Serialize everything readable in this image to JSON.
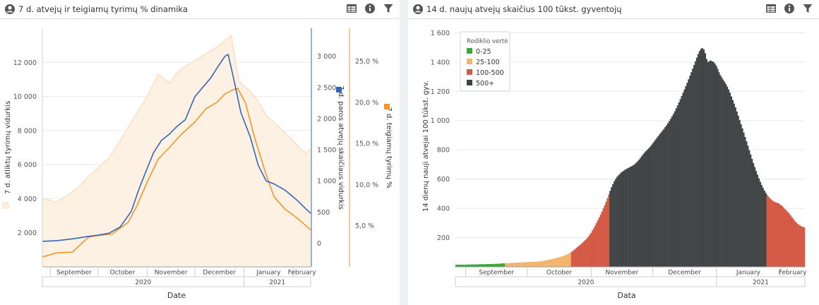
{
  "panels": {
    "left": {
      "title": "7 d. atvejų ir teigiamų tyrimų % dinamika",
      "icons": [
        "user-circle-icon",
        "table-icon",
        "info-icon",
        "filter-icon"
      ]
    },
    "right": {
      "title": "14 d. naujų atvejų skaičius 100 tūkst. gyventojų",
      "icons": [
        "user-circle-icon",
        "table-icon",
        "info-icon",
        "filter-icon"
      ]
    }
  },
  "colors": {
    "tests_area": "#fdf1e3",
    "tests_line": "#fbe0c0",
    "cases_line": "#3566b5",
    "positive_line": "#f2962b",
    "bar_green": "#3aa935",
    "bar_yellow": "#f2b56b",
    "bar_red": "#d45a45",
    "bar_black": "#3e4242"
  },
  "chart_data": [
    {
      "type": "line",
      "x_field": "Date",
      "xlabel": "Date",
      "x_month_labels": [
        "September",
        "October",
        "November",
        "December",
        "January",
        "February"
      ],
      "x_year_labels": [
        "2020",
        "2021"
      ],
      "axes": {
        "tests": {
          "label": "7 d. atliktų tyrimų vidurkis",
          "ticks": [
            "2 000",
            "4 000",
            "6 000",
            "8 000",
            "10 000",
            "12 000"
          ],
          "range": [
            0,
            14000
          ]
        },
        "cases": {
          "label": "7 d. paros atvejų skaičiaus vidurkis",
          "ticks": [
            "0",
            "500",
            "1 000",
            "1 500",
            "2 000",
            "2 500",
            "3 000"
          ],
          "range": [
            -380,
            3450
          ]
        },
        "positive": {
          "label": "7 d. teigiamų tyrimų %",
          "ticks": [
            "5,0 %",
            "10,0 %",
            "15,0 %",
            "20,0 %",
            "25,0 %"
          ],
          "range": [
            0,
            0.29
          ]
        }
      },
      "series": [
        {
          "key": "tests",
          "name": "7 d. atliktų tyrimų vidurkis",
          "axis": "tests",
          "x": [
            "2020-08-27",
            "2020-09-01",
            "2020-09-05",
            "2020-09-10",
            "2020-09-15",
            "2020-09-20",
            "2020-09-25",
            "2020-10-01",
            "2020-10-08",
            "2020-10-15",
            "2020-10-22",
            "2020-11-01",
            "2020-11-08",
            "2020-11-15",
            "2020-11-22",
            "2020-12-01",
            "2020-12-08",
            "2020-12-15",
            "2020-12-20",
            "2020-12-24",
            "2020-12-27",
            "2020-12-29",
            "2021-01-01",
            "2021-01-05",
            "2021-01-10",
            "2021-01-15",
            "2021-01-22",
            "2021-02-01",
            "2021-02-06",
            "2021-02-09",
            "2021-02-12"
          ],
          "y": [
            4000,
            3900,
            3800,
            4100,
            4400,
            4800,
            5300,
            5800,
            6400,
            7400,
            8500,
            10000,
            11300,
            10800,
            11600,
            12100,
            12500,
            12900,
            13300,
            13600,
            11800,
            10900,
            10600,
            10300,
            9700,
            8900,
            8300,
            7400,
            6900,
            6700,
            6900
          ]
        },
        {
          "key": "cases",
          "name": "7 d. paros atvejų skaičiaus vidurkis",
          "axis": "cases",
          "x": [
            "2020-08-27",
            "2020-09-05",
            "2020-09-15",
            "2020-09-25",
            "2020-10-01",
            "2020-10-08",
            "2020-10-15",
            "2020-10-22",
            "2020-10-27",
            "2020-11-01",
            "2020-11-05",
            "2020-11-10",
            "2020-11-15",
            "2020-11-20",
            "2020-11-25",
            "2020-12-01",
            "2020-12-06",
            "2020-12-11",
            "2020-12-16",
            "2020-12-20",
            "2020-12-22",
            "2020-12-25",
            "2020-12-30",
            "2021-01-05",
            "2021-01-10",
            "2021-01-15",
            "2021-01-20",
            "2021-01-27",
            "2021-02-03",
            "2021-02-09",
            "2021-02-12"
          ],
          "y": [
            30,
            40,
            70,
            110,
            130,
            160,
            260,
            510,
            880,
            1200,
            1450,
            1650,
            1750,
            1880,
            1980,
            2350,
            2500,
            2650,
            2850,
            3000,
            3030,
            2700,
            2100,
            1700,
            1250,
            1000,
            950,
            850,
            700,
            550,
            480
          ]
        },
        {
          "key": "positive",
          "name": "7 d. teigiamų tyrimų %",
          "axis": "positive",
          "x": [
            "2020-08-27",
            "2020-09-05",
            "2020-09-15",
            "2020-09-25",
            "2020-10-01",
            "2020-10-10",
            "2020-10-20",
            "2020-10-25",
            "2020-11-01",
            "2020-11-08",
            "2020-11-15",
            "2020-11-22",
            "2020-12-01",
            "2020-12-08",
            "2020-12-15",
            "2020-12-20",
            "2020-12-25",
            "2020-12-28",
            "2021-01-02",
            "2021-01-08",
            "2021-01-15",
            "2021-01-20",
            "2021-01-27",
            "2021-02-03",
            "2021-02-09",
            "2021-02-12"
          ],
          "y": [
            0.012,
            0.017,
            0.018,
            0.036,
            0.038,
            0.04,
            0.054,
            0.072,
            0.103,
            0.131,
            0.145,
            0.16,
            0.176,
            0.192,
            0.2,
            0.21,
            0.215,
            0.217,
            0.199,
            0.155,
            0.112,
            0.085,
            0.07,
            0.06,
            0.05,
            0.045
          ]
        }
      ]
    },
    {
      "type": "bar",
      "x_field": "Data",
      "xlabel": "Data",
      "ylabel": "14 dienų nauji atvejai 100 tūkst. gyv.",
      "y_ticks": [
        "200",
        "400",
        "600",
        "800",
        "1 000",
        "1 200",
        "1 400",
        "1 600"
      ],
      "ylim": [
        0,
        1650
      ],
      "x_month_labels": [
        "September",
        "October",
        "November",
        "December",
        "January",
        "February"
      ],
      "x_year_labels": [
        "2020",
        "2021"
      ],
      "legend": {
        "title": "Rodiklio vertė",
        "placement": "top-left",
        "items": [
          {
            "label": "0-25",
            "color": "#3aa935"
          },
          {
            "label": "25-100",
            "color": "#f2b56b"
          },
          {
            "label": "100-500",
            "color": "#d45a45"
          },
          {
            "label": "500+",
            "color": "#3e4242"
          }
        ]
      },
      "x_start": "2020-08-27",
      "x_end": "2021-02-12",
      "y": [
        15,
        15,
        15,
        15,
        15,
        15,
        15,
        15,
        16,
        16,
        16,
        16,
        16,
        17,
        17,
        17,
        17,
        18,
        18,
        18,
        18,
        18,
        19,
        19,
        19,
        19,
        20,
        20,
        20,
        21,
        21,
        22,
        22,
        23,
        24,
        24,
        25,
        25,
        26,
        26,
        27,
        27,
        28,
        28,
        29,
        29,
        30,
        30,
        31,
        31,
        32,
        32,
        33,
        33,
        34,
        34,
        35,
        35,
        36,
        36,
        37,
        38,
        39,
        40,
        42,
        44,
        46,
        48,
        50,
        52,
        54,
        56,
        58,
        60,
        63,
        66,
        69,
        72,
        75,
        78,
        82,
        86,
        91,
        97,
        103,
        110,
        118,
        126,
        134,
        142,
        150,
        158,
        166,
        175,
        184,
        194,
        205,
        218,
        232,
        248,
        264,
        282,
        300,
        318,
        338,
        358,
        378,
        400,
        422,
        445,
        470,
        495,
        520,
        545,
        565,
        585,
        600,
        615,
        625,
        635,
        645,
        652,
        658,
        665,
        670,
        675,
        680,
        685,
        690,
        696,
        703,
        712,
        722,
        733,
        745,
        758,
        770,
        781,
        791,
        800,
        810,
        820,
        832,
        845,
        857,
        870,
        882,
        894,
        906,
        918,
        930,
        942,
        955,
        968,
        982,
        996,
        1012,
        1028,
        1045,
        1063,
        1083,
        1103,
        1124,
        1146,
        1168,
        1190,
        1212,
        1235,
        1258,
        1282,
        1306,
        1330,
        1355,
        1380,
        1405,
        1430,
        1455,
        1475,
        1490,
        1495,
        1485,
        1460,
        1420,
        1400,
        1405,
        1410,
        1405,
        1400,
        1390,
        1375,
        1355,
        1330,
        1310,
        1295,
        1280,
        1265,
        1250,
        1232,
        1212,
        1190,
        1165,
        1140,
        1115,
        1090,
        1062,
        1033,
        1004,
        975,
        947,
        918,
        888,
        858,
        828,
        798,
        768,
        738,
        710,
        682,
        655,
        630,
        605,
        582,
        560,
        540,
        522,
        506,
        492,
        480,
        470,
        460,
        452,
        446,
        442,
        439,
        436,
        430,
        423,
        415,
        405,
        395,
        385,
        375,
        365,
        352,
        340,
        328,
        315,
        305,
        296,
        288,
        282,
        277,
        273,
        270
      ]
    }
  ]
}
